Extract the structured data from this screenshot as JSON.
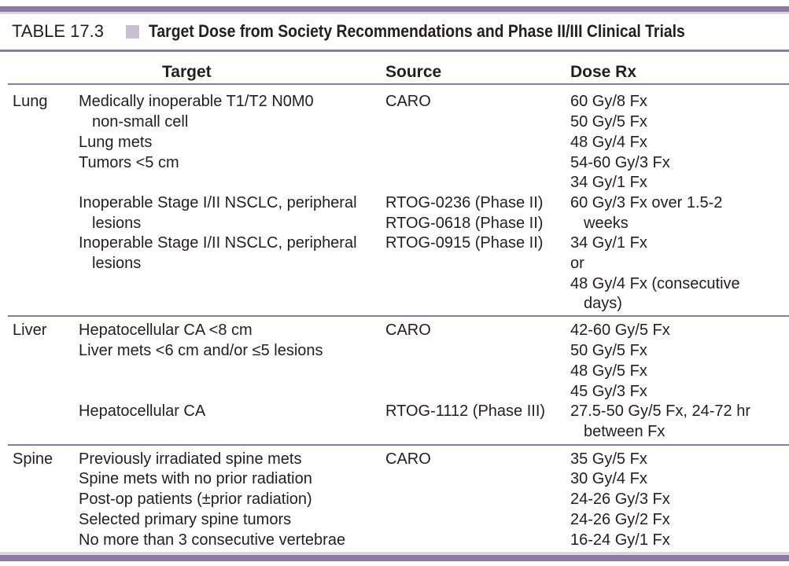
{
  "table": {
    "number": "TABLE 17.3",
    "title": "Target Dose from Society Recommendations and Phase II/III Clinical Trials",
    "headers": {
      "target": "Target",
      "source": "Source",
      "dose": "Dose Rx"
    },
    "groups": [
      {
        "category": "Lung",
        "entries": [
          {
            "target": [
              "Medically inoperable T1/T2 N0M0",
              "non-small cell",
              "Lung mets",
              "Tumors <5 cm"
            ],
            "source": [
              "CARO"
            ],
            "dose": [
              "60 Gy/8 Fx",
              "50 Gy/5 Fx",
              "48 Gy/4 Fx",
              "54-60 Gy/3 Fx",
              "34 Gy/1 Fx"
            ]
          },
          {
            "target": [
              "Inoperable Stage I/II NSCLC, peripheral",
              "lesions"
            ],
            "source": [
              "RTOG-0236 (Phase II)",
              "RTOG-0618 (Phase II)"
            ],
            "dose": [
              "60 Gy/3 Fx over 1.5-2",
              "weeks"
            ]
          },
          {
            "target": [
              "Inoperable Stage I/II NSCLC, peripheral",
              "lesions"
            ],
            "source": [
              "RTOG-0915 (Phase II)"
            ],
            "dose": [
              "34 Gy/1 Fx",
              "or",
              "48 Gy/4 Fx (consecutive",
              "days)"
            ]
          }
        ]
      },
      {
        "category": "Liver",
        "entries": [
          {
            "target": [
              "Hepatocellular CA <8 cm",
              "Liver mets <6 cm and/or ≤5 lesions"
            ],
            "source": [
              "CARO"
            ],
            "dose": [
              "42-60 Gy/5 Fx",
              "50 Gy/5 Fx",
              "48 Gy/5 Fx",
              "45 Gy/3 Fx"
            ]
          },
          {
            "target": [
              "Hepatocellular CA"
            ],
            "source": [
              "RTOG-1112 (Phase III)"
            ],
            "dose": [
              "27.5-50 Gy/5 Fx, 24-72 hr",
              "between Fx"
            ]
          }
        ]
      },
      {
        "category": "Spine",
        "entries": [
          {
            "target": [
              "Previously irradiated spine mets",
              "Spine mets with no prior radiation",
              "Post-op patients (±prior radiation)",
              "Selected primary spine tumors",
              "No more than 3 consecutive vertebrae"
            ],
            "source": [
              "CARO"
            ],
            "dose": [
              "35 Gy/5 Fx",
              "30 Gy/4 Fx",
              "24-26 Gy/3 Fx",
              "24-26 Gy/2 Fx",
              "16-24 Gy/1 Fx"
            ]
          }
        ]
      }
    ]
  }
}
